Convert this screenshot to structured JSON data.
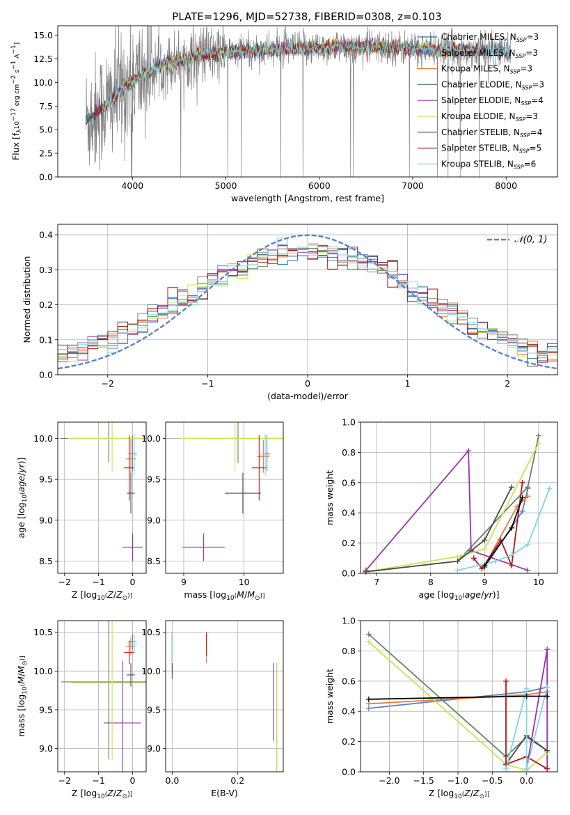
{
  "figure": {
    "title": "PLATE=1296, MJD=52738, FIBERID=0308, z=0.103"
  },
  "models": [
    {
      "name": "Chabrier MILES",
      "nssp": "3",
      "color": "#1f77b4"
    },
    {
      "name": "Salpeter MILES",
      "nssp": "3",
      "color": "#5b82c8"
    },
    {
      "name": "Kroupa MILES",
      "nssp": "3",
      "color": "#e07b39"
    },
    {
      "name": "Chabrier ELODIE",
      "nssp": "3",
      "color": "#5e8566"
    },
    {
      "name": "Salpeter ELODIE",
      "nssp": "4",
      "color": "#9932aa"
    },
    {
      "name": "Kroupa ELODIE",
      "nssp": "3",
      "color": "#c8e650"
    },
    {
      "name": "Chabrier STELIB",
      "nssp": "4",
      "color": "#4a4a4a"
    },
    {
      "name": "Salpeter STELIB",
      "nssp": "5",
      "color": "#b01818"
    },
    {
      "name": "Kroupa STELIB",
      "nssp": "6",
      "color": "#7fd6de"
    }
  ],
  "chart_data": [
    {
      "type": "line",
      "panel": "spectrum",
      "title": "PLATE=1296, MJD=52738, FIBERID=0308, z=0.103",
      "xlabel": "wavelength [Angstrom, rest frame]",
      "ylabel": "Flux [f_λ 10^-17 erg cm^-2 s^-1 A^-1]",
      "xlim": [
        3200,
        8550
      ],
      "ylim": [
        0,
        16
      ],
      "xticks": [
        4000,
        5000,
        6000,
        7000,
        8000
      ],
      "yticks": [
        0.0,
        2.5,
        5.0,
        7.5,
        10.0,
        12.5,
        15.0
      ],
      "grid": false,
      "legend": "top-right",
      "data_range": [
        3500,
        8050
      ],
      "continuum": [
        {
          "x": 3500,
          "y": 6.0
        },
        {
          "x": 3700,
          "y": 7.5
        },
        {
          "x": 4000,
          "y": 10.2
        },
        {
          "x": 4300,
          "y": 11.8
        },
        {
          "x": 4700,
          "y": 12.9
        },
        {
          "x": 5200,
          "y": 13.3
        },
        {
          "x": 5800,
          "y": 13.6
        },
        {
          "x": 6500,
          "y": 13.8
        },
        {
          "x": 7200,
          "y": 13.5
        },
        {
          "x": 7800,
          "y": 13.3
        },
        {
          "x": 8050,
          "y": 13.2
        }
      ]
    },
    {
      "type": "bar",
      "panel": "residual-histogram",
      "xlabel": "(data-model)/error",
      "ylabel": "Normed distribution",
      "xlim": [
        -2.5,
        2.5
      ],
      "ylim": [
        0,
        0.43
      ],
      "xticks": [
        -2,
        -1,
        0,
        1,
        2
      ],
      "yticks": [
        0.0,
        0.1,
        0.2,
        0.3,
        0.4
      ],
      "grid": true,
      "legend": "top-right",
      "gaussian_label": "𝒩(0, 1)",
      "gaussian_color": "#5b82c8",
      "bin_width": 0.1
    },
    {
      "type": "scatter",
      "panel": "age-vs-Z",
      "xlabel": "Z [log10(Z/Z⊙)]",
      "ylabel": "age [log10(age/yr)]",
      "xlim": [
        -2.2,
        0.4
      ],
      "ylim": [
        8.35,
        10.2
      ],
      "xticks": [
        -2,
        -1,
        0
      ],
      "yticks": [
        8.5,
        9.0,
        9.5,
        10.0
      ],
      "grid": true,
      "points": [
        {
          "model": 1,
          "x": 0.0,
          "xerr": 0.12,
          "y": 9.82,
          "yerr": 0.22
        },
        {
          "model": 2,
          "x": -0.05,
          "xerr": 0.15,
          "y": 9.75,
          "yerr": 0.25
        },
        {
          "model": 3,
          "x": -0.7,
          "xerr": 1.4,
          "y": 10.0,
          "yerr": 0.3
        },
        {
          "model": 4,
          "x": 0.0,
          "xerr": 0.3,
          "y": 8.67,
          "yerr": 0.17
        },
        {
          "model": 5,
          "x": -0.6,
          "xerr": 1.3,
          "y": 10.0,
          "yerr": 0.4
        },
        {
          "model": 6,
          "x": -0.05,
          "xerr": 0.12,
          "y": 9.33,
          "yerr": 0.25
        },
        {
          "model": 7,
          "x": -0.1,
          "xerr": 0.15,
          "y": 9.64,
          "yerr": 0.4
        },
        {
          "model": 8,
          "x": 0.05,
          "xerr": 0.08,
          "y": 9.8,
          "yerr": 0.25
        }
      ]
    },
    {
      "type": "scatter",
      "panel": "age-vs-mass",
      "xlabel": "mass [log10(M/M⊙)]",
      "ylabel": "",
      "xlim": [
        8.7,
        10.65
      ],
      "ylim": [
        8.35,
        10.2
      ],
      "xticks": [
        9,
        10
      ],
      "yticks": [
        8.5,
        9.0,
        9.5,
        10.0
      ],
      "grid": true,
      "points": [
        {
          "model": 1,
          "x": 10.38,
          "xerr": 0.05,
          "y": 9.82,
          "yerr": 0.22
        },
        {
          "model": 2,
          "x": 10.32,
          "xerr": 0.1,
          "y": 9.78,
          "yerr": 0.2
        },
        {
          "model": 3,
          "x": 9.9,
          "xerr": 0.9,
          "y": 10.0,
          "yerr": 0.3
        },
        {
          "model": 4,
          "x": 9.33,
          "xerr": 0.35,
          "y": 8.67,
          "yerr": 0.17
        },
        {
          "model": 5,
          "x": 9.85,
          "xerr": 0.9,
          "y": 10.0,
          "yerr": 0.4
        },
        {
          "model": 6,
          "x": 9.98,
          "xerr": 0.3,
          "y": 9.33,
          "yerr": 0.25
        },
        {
          "model": 7,
          "x": 10.25,
          "xerr": 0.12,
          "y": 9.64,
          "yerr": 0.4
        },
        {
          "model": 8,
          "x": 10.35,
          "xerr": 0.08,
          "y": 9.8,
          "yerr": 0.25
        }
      ]
    },
    {
      "type": "line",
      "panel": "mass-weight-vs-age",
      "xlabel": "age [log10(age/yr)]",
      "ylabel": "mass weight",
      "xlim": [
        6.7,
        10.35
      ],
      "ylim": [
        0,
        1.0
      ],
      "xticks": [
        7,
        8,
        9,
        10
      ],
      "yticks": [
        0.0,
        0.2,
        0.4,
        0.6,
        0.8,
        1.0
      ],
      "grid": true,
      "series": [
        {
          "model": 1,
          "x": [
            9.0,
            9.7,
            9.8
          ],
          "y": [
            0.04,
            0.41,
            0.56
          ]
        },
        {
          "model": 2,
          "x": [
            9.0,
            9.6,
            9.8
          ],
          "y": [
            0.05,
            0.44,
            0.51
          ]
        },
        {
          "model": 3,
          "x": [
            8.5,
            9.8,
            10.0
          ],
          "y": [
            0.08,
            0.57,
            0.91
          ]
        },
        {
          "model": 4,
          "x": [
            6.8,
            8.7,
            8.75,
            9.8
          ],
          "y": [
            0.02,
            0.81,
            0.15,
            0.02
          ]
        },
        {
          "model": 5,
          "x": [
            6.8,
            8.5,
            9.0,
            10.0
          ],
          "y": [
            0.01,
            0.11,
            0.16,
            0.86
          ]
        },
        {
          "model": 6,
          "x": [
            6.8,
            8.5,
            9.0,
            9.5
          ],
          "y": [
            0.01,
            0.08,
            0.22,
            0.57
          ]
        },
        {
          "model": 7,
          "x": [
            8.8,
            8.95,
            9.3,
            9.5,
            9.7
          ],
          "y": [
            0.1,
            0.03,
            0.22,
            0.05,
            0.6
          ]
        },
        {
          "model": 8,
          "x": [
            8.5,
            9.2,
            9.5,
            9.8,
            10.2
          ],
          "y": [
            0.02,
            0.08,
            0.12,
            0.19,
            0.56
          ]
        },
        {
          "model": 9,
          "x": [
            9.0,
            9.5,
            9.7
          ],
          "y": [
            0.05,
            0.3,
            0.5
          ]
        }
      ]
    },
    {
      "type": "scatter",
      "panel": "mass-vs-Z",
      "xlabel": "Z [log10(Z/Z⊙)]",
      "ylabel": "mass [log10(M/M⊙)]",
      "xlim": [
        -2.2,
        0.4
      ],
      "ylim": [
        8.7,
        10.65
      ],
      "xticks": [
        -2,
        -1,
        0
      ],
      "yticks": [
        9.0,
        9.5,
        10.0,
        10.5
      ],
      "grid": true,
      "points": [
        {
          "model": 1,
          "x": 0.0,
          "xerr": 0.12,
          "y": 10.38,
          "yerr": 0.1
        },
        {
          "model": 2,
          "x": -0.05,
          "xerr": 0.15,
          "y": 10.32,
          "yerr": 0.12
        },
        {
          "model": 3,
          "x": -0.7,
          "xerr": 1.4,
          "y": 9.86,
          "yerr": 1.0
        },
        {
          "model": 4,
          "x": -0.3,
          "xerr": 0.55,
          "y": 9.33,
          "yerr": 0.8
        },
        {
          "model": 5,
          "x": -0.6,
          "xerr": 1.2,
          "y": 9.85,
          "yerr": 1.0
        },
        {
          "model": 6,
          "x": -0.05,
          "xerr": 0.12,
          "y": 9.95,
          "yerr": 0.15
        },
        {
          "model": 7,
          "x": -0.1,
          "xerr": 0.15,
          "y": 10.24,
          "yerr": 0.15
        },
        {
          "model": 8,
          "x": 0.05,
          "xerr": 0.08,
          "y": 10.35,
          "yerr": 0.12
        }
      ]
    },
    {
      "type": "scatter",
      "panel": "mass-vs-EBV",
      "xlabel": "E(B-V)",
      "ylabel": "",
      "xlim": [
        -0.02,
        0.34
      ],
      "ylim": [
        8.7,
        10.65
      ],
      "xticks": [
        0.0,
        0.2
      ],
      "yticks": [
        9.0,
        9.5,
        10.0,
        10.5
      ],
      "grid": true,
      "points": [
        {
          "model": 1,
          "x": 0.0,
          "y": 10.25,
          "yerr": 0.25
        },
        {
          "model": 2,
          "x": 0.105,
          "y": 10.3,
          "yerr": 0.2
        },
        {
          "model": 3,
          "x": 0.32,
          "y": 9.4,
          "yerr": 0.7
        },
        {
          "model": 4,
          "x": 0.31,
          "y": 9.6,
          "yerr": 0.5
        },
        {
          "model": 5,
          "x": 0.32,
          "y": 9.35,
          "yerr": 0.75
        },
        {
          "model": 6,
          "x": 0.0,
          "y": 10.2,
          "yerr": 0.3
        },
        {
          "model": 7,
          "x": 0.105,
          "y": 10.35,
          "yerr": 0.15
        },
        {
          "model": 8,
          "x": 0.0,
          "y": 10.3,
          "yerr": 0.2
        }
      ]
    },
    {
      "type": "line",
      "panel": "mass-weight-vs-Z",
      "xlabel": "Z [log10(Z/Z⊙)]",
      "ylabel": "mass weight",
      "xlim": [
        -2.42,
        0.45
      ],
      "ylim": [
        0,
        1.0
      ],
      "xticks": [
        -2.0,
        -1.5,
        -1.0,
        -0.5,
        0.0
      ],
      "yticks": [
        0.0,
        0.2,
        0.4,
        0.6,
        0.8,
        1.0
      ],
      "grid": true,
      "series": [
        {
          "model": 1,
          "x": [
            -2.3,
            0.0,
            0.3
          ],
          "y": [
            0.42,
            0.53,
            0.56
          ]
        },
        {
          "model": 2,
          "x": [
            -2.3,
            0.0,
            0.3
          ],
          "y": [
            0.45,
            0.51,
            0.53
          ]
        },
        {
          "model": 3,
          "x": [
            -2.3,
            -0.3,
            0.0,
            0.3
          ],
          "y": [
            0.91,
            0.1,
            0.23,
            0.14
          ]
        },
        {
          "model": 4,
          "x": [
            0.0,
            0.3,
            0.3
          ],
          "y": [
            0.02,
            0.81,
            0.02
          ]
        },
        {
          "model": 5,
          "x": [
            -2.3,
            -0.3,
            0.0,
            0.3
          ],
          "y": [
            0.86,
            0.05,
            0.01,
            0.13
          ]
        },
        {
          "model": 6,
          "x": [
            -0.3,
            0.0,
            0.3
          ],
          "y": [
            0.05,
            0.24,
            0.14
          ]
        },
        {
          "model": 7,
          "x": [
            -0.3,
            -0.3,
            0.0,
            0.3
          ],
          "y": [
            0.6,
            0.05,
            0.1,
            0.02
          ]
        },
        {
          "model": 8,
          "x": [
            -0.3,
            0.0,
            0.0,
            0.3
          ],
          "y": [
            0.02,
            0.55,
            0.02,
            0.56
          ]
        },
        {
          "model": 9,
          "x": [
            -2.3,
            0.0,
            0.3
          ],
          "y": [
            0.48,
            0.5,
            0.5
          ]
        }
      ]
    }
  ]
}
